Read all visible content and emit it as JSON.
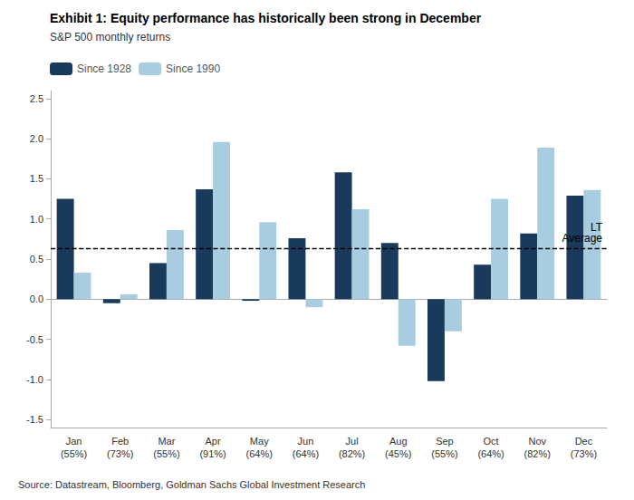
{
  "chart_data": {
    "type": "bar",
    "title": "Exhibit 1: Equity performance has historically been strong in December",
    "subtitle": "S&P 500 monthly returns",
    "source": "Source: Datastream, Bloomberg, Goldman Sachs Global Investment Research",
    "categories": [
      "Jan\n(55%)",
      "Feb\n(73%)",
      "Mar\n(55%)",
      "Apr\n(91%)",
      "May\n(64%)",
      "Jun\n(64%)",
      "Jul\n(82%)",
      "Aug\n(45%)",
      "Sep\n(55%)",
      "Oct\n(64%)",
      "Nov\n(82%)",
      "Dec\n(73%)"
    ],
    "series": [
      {
        "name": "Since 1928",
        "color": "#1a3a5c",
        "values": [
          1.25,
          -0.05,
          0.45,
          1.37,
          -0.02,
          0.76,
          1.58,
          0.7,
          -1.02,
          0.43,
          0.82,
          1.29
        ]
      },
      {
        "name": "Since 1990",
        "color": "#a8cce0",
        "values": [
          0.33,
          0.06,
          0.86,
          1.96,
          0.96,
          -0.1,
          1.12,
          -0.58,
          -0.4,
          1.25,
          1.89,
          1.36
        ]
      }
    ],
    "annotations": [
      {
        "text": "LT\nAverage",
        "y": 0.63,
        "line_style": "dashed"
      }
    ],
    "ylim": [
      -1.6,
      2.6
    ],
    "yticks": [
      -1.5,
      {
        "value": -1.0,
        "label": "-1.0"
      },
      -0.5,
      {
        "value": 0.0,
        "label": "0.0"
      },
      0.5,
      {
        "value": 1.0,
        "label": "1.0"
      },
      1.5,
      {
        "value": 2.0,
        "label": "2.0"
      },
      2.5
    ],
    "grid": false,
    "legend": "upper left"
  }
}
